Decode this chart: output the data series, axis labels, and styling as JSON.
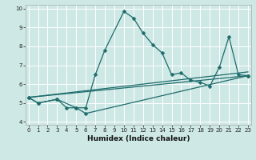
{
  "xlabel": "Humidex (Indice chaleur)",
  "bg_color": "#cde8e5",
  "line_color": "#1e6b6b",
  "grid_color": "#ffffff",
  "series": [
    {
      "x": [
        0,
        1,
        3,
        4,
        5,
        6,
        7,
        8,
        10,
        11,
        12,
        13,
        14,
        15,
        16,
        17,
        18,
        19,
        20,
        21,
        22,
        23
      ],
      "y": [
        5.3,
        5.0,
        5.2,
        4.75,
        4.75,
        4.75,
        6.5,
        7.8,
        9.85,
        9.5,
        8.7,
        8.1,
        7.65,
        6.5,
        6.6,
        6.2,
        6.1,
        5.9,
        6.9,
        8.5,
        6.5,
        6.45
      ],
      "marker": true
    },
    {
      "x": [
        0,
        1,
        3,
        5,
        6,
        23
      ],
      "y": [
        5.3,
        5.0,
        5.2,
        4.75,
        4.45,
        6.45
      ],
      "marker": true
    },
    {
      "x": [
        0,
        23
      ],
      "y": [
        5.3,
        6.45
      ],
      "marker": false
    },
    {
      "x": [
        0,
        23
      ],
      "y": [
        5.3,
        6.65
      ],
      "marker": false
    }
  ],
  "xlim": [
    -0.3,
    23.3
  ],
  "ylim": [
    3.85,
    10.2
  ],
  "yticks": [
    4,
    5,
    6,
    7,
    8,
    9,
    10
  ],
  "xticks": [
    0,
    1,
    2,
    3,
    4,
    5,
    6,
    7,
    8,
    9,
    10,
    11,
    12,
    13,
    14,
    15,
    16,
    17,
    18,
    19,
    20,
    21,
    22,
    23
  ],
  "tick_fontsize": 5.0,
  "xlabel_fontsize": 6.5,
  "marker_size": 2.5,
  "line_width": 0.9
}
